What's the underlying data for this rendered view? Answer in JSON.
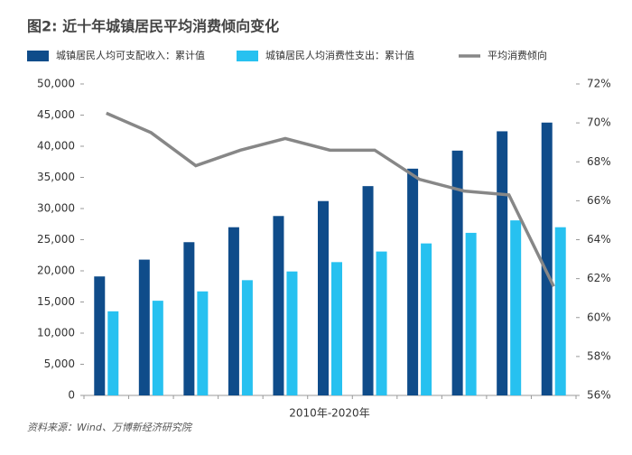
{
  "chart_data": {
    "type": "bar-line",
    "title": "图2: 近十年城镇居民平均消费倾向变化",
    "x_label": "2010年-2020年",
    "source": "资料来源：Wind、万博新经济研究院",
    "categories": [
      null,
      null,
      null,
      null,
      null,
      null,
      null,
      null,
      null,
      null,
      null
    ],
    "series": [
      {
        "name": "城镇居民人均可支配收入：累计值",
        "type": "bar",
        "color": "#0f4c8a",
        "values": [
          19100,
          21800,
          24600,
          27000,
          28800,
          31200,
          33600,
          36400,
          39300,
          42400,
          43800
        ]
      },
      {
        "name": "城镇居民人均消费性支出：累计值",
        "type": "bar",
        "color": "#27c1f0",
        "values": [
          13500,
          15200,
          16700,
          18500,
          19900,
          21400,
          23100,
          24400,
          26100,
          28100,
          27000
        ]
      },
      {
        "name": "平均消费倾向",
        "type": "line",
        "axis": "y2",
        "color": "#878787",
        "values": [
          70.5,
          69.5,
          67.8,
          68.6,
          69.2,
          68.6,
          68.6,
          67.1,
          66.5,
          66.3,
          61.6
        ]
      }
    ],
    "ylim": [
      0,
      50000
    ],
    "yticks": [
      0,
      {
        "value": 5000,
        "label": "5,000"
      },
      {
        "value": 10000,
        "label": "10,000"
      },
      {
        "value": 15000,
        "label": "15,000"
      },
      {
        "value": 20000,
        "label": "20,000"
      },
      {
        "value": 25000,
        "label": "25,000"
      },
      {
        "value": 30000,
        "label": "30,000"
      },
      {
        "value": 35000,
        "label": "35,000"
      },
      {
        "value": 40000,
        "label": "40,000"
      },
      {
        "value": 45000,
        "label": "45,000"
      },
      {
        "value": 50000,
        "label": "50,000"
      }
    ],
    "y2lim": [
      56,
      72
    ],
    "y2ticks": [
      {
        "value": 56,
        "label": "56%"
      },
      {
        "value": 58,
        "label": "58%"
      },
      {
        "value": 60,
        "label": "60%"
      },
      {
        "value": 62,
        "label": "62%"
      },
      {
        "value": 64,
        "label": "64%"
      },
      {
        "value": 66,
        "label": "66%"
      },
      {
        "value": 68,
        "label": "68%"
      },
      {
        "value": 70,
        "label": "70%"
      },
      {
        "value": 72,
        "label": "72%"
      }
    ],
    "grid": false
  }
}
